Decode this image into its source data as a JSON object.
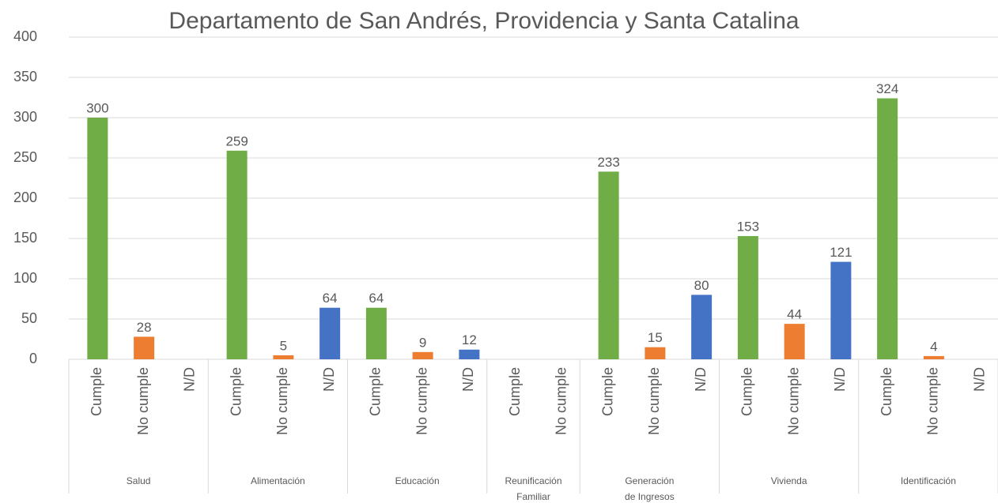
{
  "chart_data": {
    "type": "bar",
    "title": "Departamento de San Andrés, Providencia y Santa Catalina",
    "category_colors": [
      {
        "category": "Cumple",
        "color": "#70ad47"
      },
      {
        "category": "No cumple",
        "color": "#ed7d31"
      },
      {
        "category": "N/D",
        "color": "#4472c4"
      }
    ],
    "groups": [
      {
        "name": [
          "Salud"
        ],
        "categories": [
          "Cumple",
          "No cumple",
          "N/D"
        ],
        "values": [
          300,
          28,
          null
        ]
      },
      {
        "name": [
          "Alimentación"
        ],
        "categories": [
          "Cumple",
          "No cumple",
          "N/D"
        ],
        "values": [
          259,
          5,
          64
        ]
      },
      {
        "name": [
          "Educación"
        ],
        "categories": [
          "Cumple",
          "No cumple",
          "N/D"
        ],
        "values": [
          64,
          9,
          12
        ]
      },
      {
        "name": [
          "Reunificación",
          "Familiar"
        ],
        "categories": [
          "Cumple",
          "No cumple"
        ],
        "values": [
          null,
          null
        ]
      },
      {
        "name": [
          "Generación",
          "de Ingresos"
        ],
        "categories": [
          "Cumple",
          "No cumple",
          "N/D"
        ],
        "values": [
          233,
          15,
          80
        ]
      },
      {
        "name": [
          "Vivienda"
        ],
        "categories": [
          "Cumple",
          "No cumple",
          "N/D"
        ],
        "values": [
          153,
          44,
          121
        ]
      },
      {
        "name": [
          "Identificación"
        ],
        "categories": [
          "Cumple",
          "No cumple",
          "N/D"
        ],
        "values": [
          324,
          4,
          null
        ]
      }
    ],
    "ylim": [
      0,
      400
    ],
    "yticks": [
      0,
      50,
      100,
      150,
      200,
      250,
      300,
      350,
      400
    ],
    "grid": true
  }
}
